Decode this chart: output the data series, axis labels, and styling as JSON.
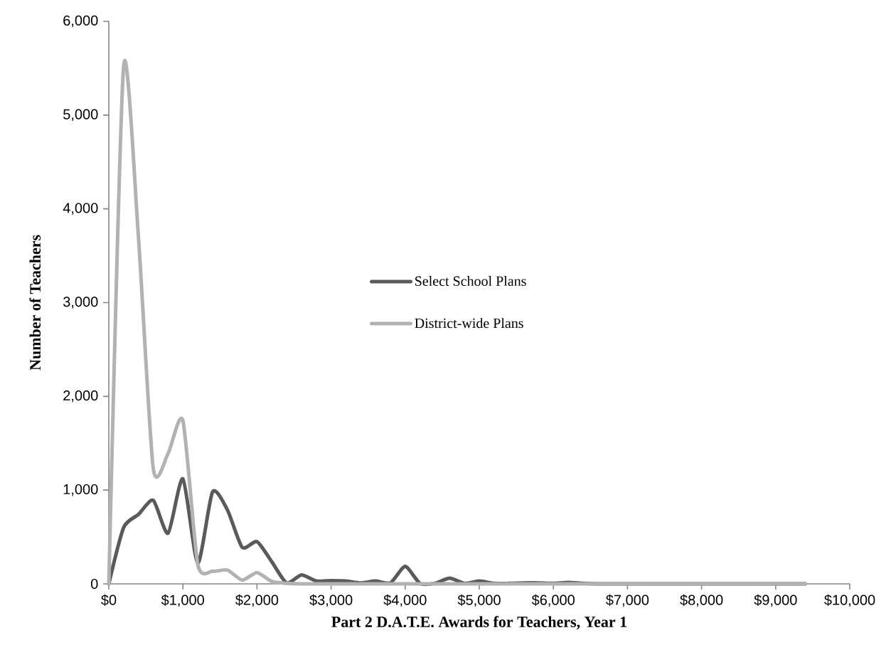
{
  "chart_data": {
    "type": "line",
    "xlabel": "Part 2 D.A.T.E. Awards for Teachers, Year 1",
    "ylabel": "Number of Teachers",
    "x": [
      0,
      200,
      400,
      600,
      800,
      1000,
      1200,
      1400,
      1600,
      1800,
      2000,
      2200,
      2400,
      2600,
      2800,
      3000,
      3200,
      3400,
      3600,
      3800,
      4000,
      4200,
      4400,
      4600,
      4800,
      5000,
      5200,
      5400,
      5600,
      5800,
      6000,
      6200,
      6400,
      6600,
      6800,
      7000,
      7200,
      7400,
      7600,
      7800,
      8000,
      8200,
      8400,
      8600,
      8800,
      9000,
      9200,
      9400
    ],
    "series": [
      {
        "name": "Select School Plans",
        "color": "#5a5a5a",
        "values": [
          0,
          600,
          740,
          890,
          540,
          1120,
          220,
          980,
          790,
          390,
          450,
          235,
          10,
          95,
          30,
          35,
          30,
          10,
          30,
          10,
          185,
          5,
          5,
          60,
          5,
          30,
          5,
          5,
          10,
          10,
          5,
          15,
          5,
          0,
          0,
          0,
          0,
          0,
          0,
          0,
          0,
          0,
          0,
          0,
          0,
          0,
          0,
          0
        ]
      },
      {
        "name": "District-wide Plans",
        "color": "#b2b2b2",
        "values": [
          0,
          5520,
          3700,
          1230,
          1390,
          1740,
          210,
          135,
          147,
          40,
          120,
          25,
          5,
          0,
          0,
          0,
          0,
          0,
          0,
          0,
          0,
          0,
          0,
          0,
          0,
          0,
          0,
          0,
          0,
          0,
          0,
          0,
          0,
          0,
          0,
          0,
          0,
          0,
          0,
          0,
          0,
          0,
          0,
          0,
          0,
          0,
          0,
          0
        ]
      }
    ],
    "xlim": [
      0,
      10000
    ],
    "ylim": [
      0,
      6000
    ],
    "xticks": [
      {
        "value": 0,
        "label": "$0"
      },
      {
        "value": 1000,
        "label": "$1,000"
      },
      {
        "value": 2000,
        "label": "$2,000"
      },
      {
        "value": 3000,
        "label": "$3,000"
      },
      {
        "value": 4000,
        "label": "$4,000"
      },
      {
        "value": 5000,
        "label": "$5,000"
      },
      {
        "value": 6000,
        "label": "$6,000"
      },
      {
        "value": 7000,
        "label": "$7,000"
      },
      {
        "value": 8000,
        "label": "$8,000"
      },
      {
        "value": 9000,
        "label": "$9,000"
      },
      {
        "value": 10000,
        "label": "$10,000"
      }
    ],
    "yticks": [
      0,
      {
        "value": 1000,
        "label": "1,000"
      },
      {
        "value": 2000,
        "label": "2,000"
      },
      {
        "value": 3000,
        "label": "3,000"
      },
      {
        "value": 4000,
        "label": "4,000"
      },
      {
        "value": 5000,
        "label": "5,000"
      },
      {
        "value": 6000,
        "label": "6,000"
      }
    ],
    "legend": "center",
    "line_style": "solid"
  }
}
